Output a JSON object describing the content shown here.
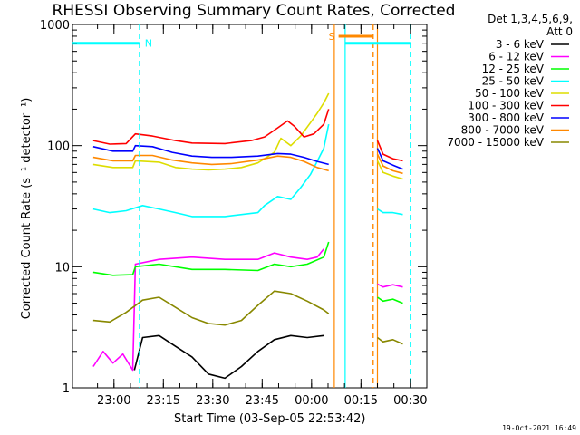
{
  "chart_data": {
    "type": "line",
    "title": "RHESSI Observing Summary Count Rates, Corrected",
    "xlabel": "Start Time (03-Sep-05 22:53:42)",
    "ylabel": "Corrected Count Rate (s⁻¹ detector⁻¹)",
    "x_range_min": [
      -6.3,
      38.5
    ],
    "ylim": [
      1,
      1000
    ],
    "y_scale": "log",
    "x_ticks": [
      {
        "t": 6.3,
        "label": "23:00"
      },
      {
        "t": 21.3,
        "label": "23:15"
      },
      {
        "t": 36.3,
        "label": "23:30"
      },
      {
        "t": 51.3,
        "label": "23:45"
      },
      {
        "t": 66.3,
        "label": "00:00"
      },
      {
        "t": 81.3,
        "label": "00:15"
      },
      {
        "t": 96.3,
        "label": "00:30"
      }
    ],
    "y_ticks": [
      {
        "v": 1,
        "label": "1"
      },
      {
        "v": 10,
        "label": "10"
      },
      {
        "v": 100,
        "label": "100"
      },
      {
        "v": 1000,
        "label": "1000"
      }
    ],
    "legend_header": [
      "Det 1,3,4,5,6,9,",
      "Att 0"
    ],
    "legend_placement": "right",
    "timestamp": "19-Oct-2021 16:49",
    "series": [
      {
        "name": "3 - 6 keV",
        "color": "#000000",
        "points": [
          [
            12.5,
            1.4
          ],
          [
            15,
            2.6
          ],
          [
            20,
            2.7
          ],
          [
            25,
            2.2
          ],
          [
            30,
            1.8
          ],
          [
            35,
            1.3
          ],
          [
            40,
            1.2
          ],
          [
            45,
            1.5
          ],
          [
            50,
            2.0
          ],
          [
            55,
            2.5
          ],
          [
            60,
            2.7
          ],
          [
            65,
            2.6
          ],
          [
            70,
            2.7
          ]
        ]
      },
      {
        "name": "6 - 12 keV",
        "color": "#ff00ff",
        "points": [
          [
            0,
            1.5
          ],
          [
            3,
            2.0
          ],
          [
            6,
            1.6
          ],
          [
            9,
            1.9
          ],
          [
            12,
            1.4
          ],
          [
            12.8,
            10.5
          ],
          [
            20,
            11.5
          ],
          [
            30,
            12
          ],
          [
            40,
            11.5
          ],
          [
            50,
            11.5
          ],
          [
            55,
            13
          ],
          [
            60,
            12
          ],
          [
            65,
            11.5
          ],
          [
            68,
            12
          ],
          [
            70,
            14
          ]
        ]
      },
      {
        "name": "12 - 25 keV",
        "color": "#00ff00",
        "points": [
          [
            0,
            9
          ],
          [
            6,
            8.5
          ],
          [
            12,
            8.6
          ],
          [
            12.8,
            10
          ],
          [
            20,
            10.5
          ],
          [
            30,
            9.5
          ],
          [
            40,
            9.5
          ],
          [
            50,
            9.3
          ],
          [
            55,
            10.5
          ],
          [
            60,
            10
          ],
          [
            65,
            10.5
          ],
          [
            70,
            12
          ],
          [
            71.5,
            16
          ]
        ]
      },
      {
        "name": "25 - 50 keV",
        "color": "#00ffff",
        "points": [
          [
            0,
            30
          ],
          [
            5,
            28
          ],
          [
            10,
            29
          ],
          [
            15,
            32
          ],
          [
            20,
            30
          ],
          [
            25,
            28
          ],
          [
            30,
            26
          ],
          [
            40,
            26
          ],
          [
            50,
            28
          ],
          [
            52,
            32
          ],
          [
            56,
            38
          ],
          [
            60,
            36
          ],
          [
            63,
            45
          ],
          [
            66,
            58
          ],
          [
            68,
            74
          ],
          [
            70,
            95
          ],
          [
            71.5,
            150
          ]
        ]
      },
      {
        "name": "50 - 100 keV",
        "color": "#dddd00",
        "points": [
          [
            0,
            70
          ],
          [
            6,
            66
          ],
          [
            12,
            66
          ],
          [
            12.8,
            75
          ],
          [
            20,
            73
          ],
          [
            25,
            66
          ],
          [
            30,
            64
          ],
          [
            35,
            63
          ],
          [
            40,
            64
          ],
          [
            45,
            66
          ],
          [
            50,
            72
          ],
          [
            55,
            88
          ],
          [
            57,
            115
          ],
          [
            60,
            100
          ],
          [
            63,
            120
          ],
          [
            66,
            155
          ],
          [
            68,
            185
          ],
          [
            70,
            225
          ],
          [
            71.5,
            270
          ]
        ]
      },
      {
        "name": "100 - 300 keV",
        "color": "#ff0000",
        "points": [
          [
            0,
            110
          ],
          [
            5,
            103
          ],
          [
            10,
            104
          ],
          [
            12.8,
            125
          ],
          [
            18,
            120
          ],
          [
            25,
            110
          ],
          [
            30,
            105
          ],
          [
            40,
            104
          ],
          [
            48,
            110
          ],
          [
            52,
            118
          ],
          [
            56,
            140
          ],
          [
            59,
            160
          ],
          [
            61,
            145
          ],
          [
            64,
            118
          ],
          [
            67,
            125
          ],
          [
            70,
            150
          ],
          [
            71.5,
            200
          ]
        ]
      },
      {
        "name": "300 - 800 keV",
        "color": "#0000ff",
        "points": [
          [
            0,
            98
          ],
          [
            6,
            90
          ],
          [
            12,
            90
          ],
          [
            12.8,
            100
          ],
          [
            18,
            98
          ],
          [
            24,
            88
          ],
          [
            30,
            82
          ],
          [
            36,
            80
          ],
          [
            42,
            80
          ],
          [
            50,
            82
          ],
          [
            56,
            86
          ],
          [
            60,
            85
          ],
          [
            64,
            80
          ],
          [
            68,
            74
          ],
          [
            71.5,
            70
          ]
        ]
      },
      {
        "name": "800 - 7000 keV",
        "color": "#ff8800",
        "points": [
          [
            0,
            80
          ],
          [
            6,
            75
          ],
          [
            12,
            75
          ],
          [
            12.8,
            83
          ],
          [
            18,
            83
          ],
          [
            24,
            76
          ],
          [
            30,
            72
          ],
          [
            36,
            70
          ],
          [
            42,
            71
          ],
          [
            50,
            76
          ],
          [
            56,
            82
          ],
          [
            60,
            80
          ],
          [
            64,
            74
          ],
          [
            68,
            66
          ],
          [
            71.5,
            62
          ]
        ]
      },
      {
        "name": "7000 - 15000 keV",
        "color": "#888800",
        "points": [
          [
            0,
            3.6
          ],
          [
            5,
            3.5
          ],
          [
            10,
            4.2
          ],
          [
            15,
            5.3
          ],
          [
            20,
            5.6
          ],
          [
            24,
            4.8
          ],
          [
            30,
            3.8
          ],
          [
            35,
            3.4
          ],
          [
            40,
            3.3
          ],
          [
            45,
            3.6
          ],
          [
            50,
            4.8
          ],
          [
            55,
            6.3
          ],
          [
            60,
            6.0
          ],
          [
            65,
            5.2
          ],
          [
            70,
            4.4
          ],
          [
            71.5,
            4.1
          ]
        ]
      }
    ],
    "post_gap_series": [
      {
        "color": "#ff0000",
        "points": [
          [
            86.3,
            110
          ],
          [
            88,
            85
          ],
          [
            91,
            78
          ],
          [
            94,
            75
          ]
        ]
      },
      {
        "color": "#0000ff",
        "points": [
          [
            86.3,
            95
          ],
          [
            88,
            75
          ],
          [
            91,
            69
          ],
          [
            94,
            64
          ]
        ]
      },
      {
        "color": "#ff8800",
        "points": [
          [
            86.3,
            85
          ],
          [
            88,
            68
          ],
          [
            91,
            62
          ],
          [
            94,
            59
          ]
        ]
      },
      {
        "color": "#dddd00",
        "points": [
          [
            86.3,
            75
          ],
          [
            88,
            60
          ],
          [
            91,
            56
          ],
          [
            94,
            53
          ]
        ]
      },
      {
        "color": "#00ffff",
        "points": [
          [
            86.3,
            30
          ],
          [
            88,
            28
          ],
          [
            91,
            28
          ],
          [
            94,
            27
          ]
        ]
      },
      {
        "color": "#ff00ff",
        "points": [
          [
            86.3,
            7.2
          ],
          [
            88,
            6.8
          ],
          [
            91,
            7.1
          ],
          [
            94,
            6.8
          ]
        ]
      },
      {
        "color": "#00ff00",
        "points": [
          [
            86.3,
            5.6
          ],
          [
            88,
            5.2
          ],
          [
            91,
            5.4
          ],
          [
            94,
            5.0
          ]
        ]
      },
      {
        "color": "#888800",
        "points": [
          [
            86.3,
            2.6
          ],
          [
            88,
            2.4
          ],
          [
            91,
            2.5
          ],
          [
            94,
            2.3
          ]
        ]
      }
    ],
    "flags": [
      {
        "label": "N",
        "color": "#00ffff",
        "bar_from": -6.3,
        "bar_to": 14.0,
        "level": 700,
        "dashed_at": 14.0,
        "solid_at": -6.3
      },
      {
        "label": "S",
        "color": "#ff8800",
        "bar_from": 74.5,
        "bar_to": 85.0,
        "level": 800,
        "dashed_at": 85.0,
        "solid_at": 73.2
      },
      {
        "label": "",
        "color": "#00ffff",
        "bar_from": 76.5,
        "bar_to": 96.3,
        "level": 700,
        "dashed_at": 96.3,
        "solid_at": 76.5
      }
    ],
    "gap_lines": [
      {
        "t": 73.2,
        "color": "#ff8800",
        "style": "solid"
      },
      {
        "t": 76.5,
        "color": "#00ffff",
        "style": "solid"
      },
      {
        "t": 85.0,
        "color": "#ff8800",
        "style": "dashed"
      },
      {
        "t": 86.3,
        "color": "#ff8800",
        "style": "solid"
      },
      {
        "t": 96.3,
        "color": "#00ffff",
        "style": "dashed"
      }
    ]
  }
}
